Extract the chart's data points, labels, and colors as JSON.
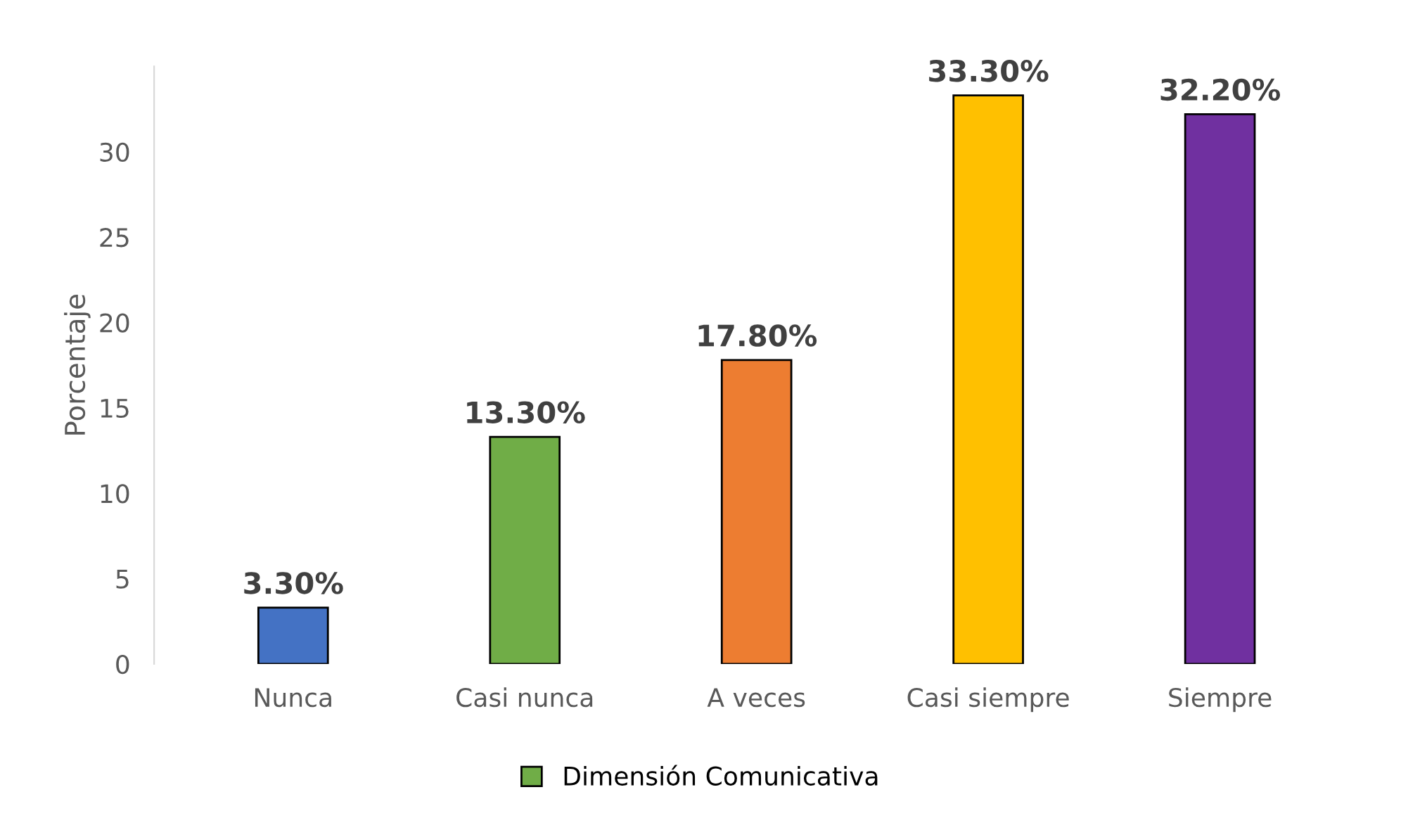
{
  "chart_data": {
    "type": "bar",
    "ylabel": "Porcentaje",
    "categories": [
      "Nunca",
      "Casi nunca",
      "A veces",
      "Casi siempre",
      "Siempre"
    ],
    "series": [
      {
        "name": "Dimensión Comunicativa",
        "color": "#70ad47",
        "colors": [
          "#4472c4",
          "#70ad47",
          "#ed7d31",
          "#ffc000",
          "#7030a0"
        ],
        "values": [
          3.3,
          13.3,
          17.8,
          33.3,
          32.2
        ],
        "value_labels": [
          "3.30%",
          "13.30%",
          "17.80%",
          "33.30%",
          "32.20%"
        ]
      }
    ],
    "ylim": [
      0,
      35
    ],
    "yticks": [
      0,
      5,
      10,
      15,
      20,
      25,
      30
    ],
    "grid": false,
    "legend": "bottom"
  }
}
